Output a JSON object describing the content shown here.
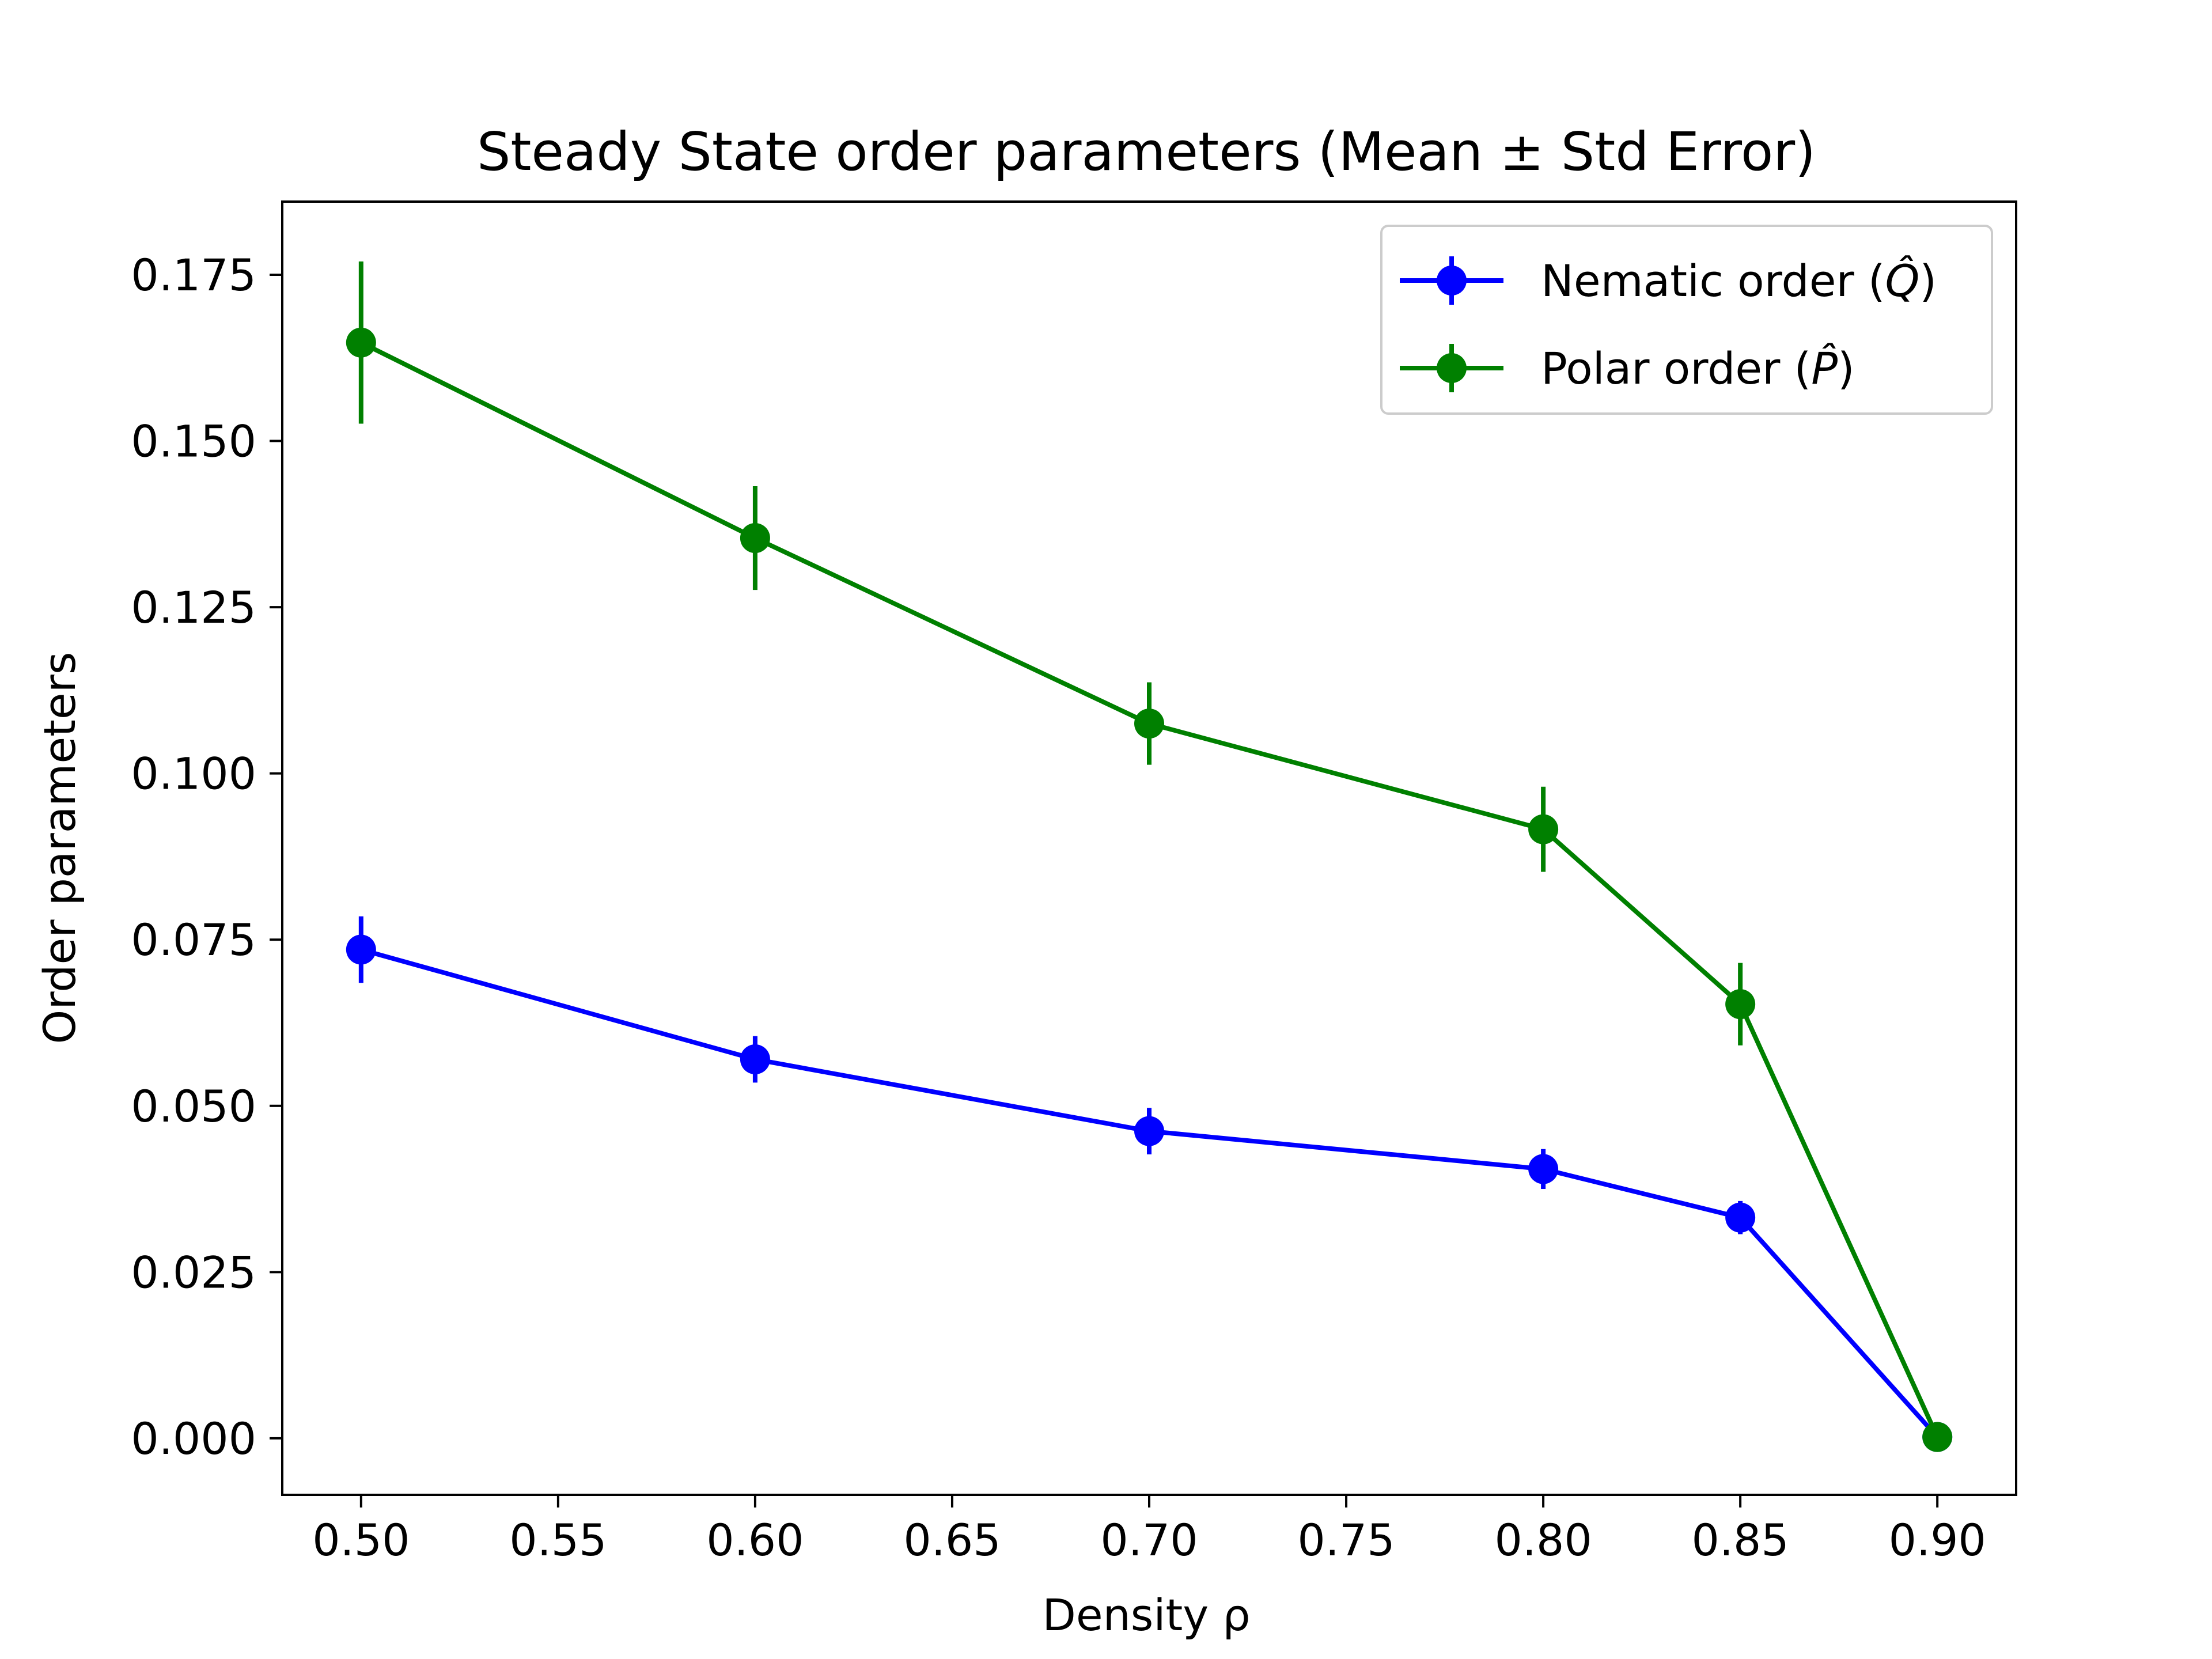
{
  "chart_data": {
    "type": "line",
    "title": "Steady State order parameters (Mean ± Std Error)",
    "xlabel": "Density ρ",
    "ylabel": "Order parameters",
    "xlim": [
      0.48,
      0.92
    ],
    "ylim": [
      -0.0085,
      0.186
    ],
    "xticks": [
      0.5,
      0.55,
      0.6,
      0.65,
      0.7,
      0.75,
      0.8,
      0.85,
      0.9
    ],
    "xtick_labels": [
      "0.50",
      "0.55",
      "0.60",
      "0.65",
      "0.70",
      "0.75",
      "0.80",
      "0.85",
      "0.90"
    ],
    "yticks": [
      0.0,
      0.025,
      0.05,
      0.075,
      0.1,
      0.125,
      0.15,
      0.175
    ],
    "ytick_labels": [
      "0.000",
      "0.025",
      "0.050",
      "0.075",
      "0.100",
      "0.125",
      "0.150",
      "0.175"
    ],
    "grid": false,
    "legend_position": "top-right",
    "x": [
      0.5,
      0.6,
      0.7,
      0.8,
      0.85,
      0.9
    ],
    "series": [
      {
        "name": "Nematic order (Q̂)",
        "legend_main": "Nematic order (",
        "legend_symbol": "Q̂",
        "legend_close": ")",
        "color": "#0000ff",
        "values": [
          0.0735,
          0.057,
          0.0462,
          0.0405,
          0.0332,
          0.0002
        ],
        "errors": [
          0.005,
          0.0035,
          0.0035,
          0.003,
          0.0025,
          0.0005
        ]
      },
      {
        "name": "Polar order (P̂)",
        "legend_main": "Polar order (",
        "legend_symbol": "P̂",
        "legend_close": ")",
        "color": "#008000",
        "values": [
          0.1648,
          0.1354,
          0.1075,
          0.0916,
          0.0653,
          0.0002
        ],
        "errors": [
          0.0122,
          0.0078,
          0.0062,
          0.0064,
          0.0062,
          0.0005
        ]
      }
    ]
  }
}
